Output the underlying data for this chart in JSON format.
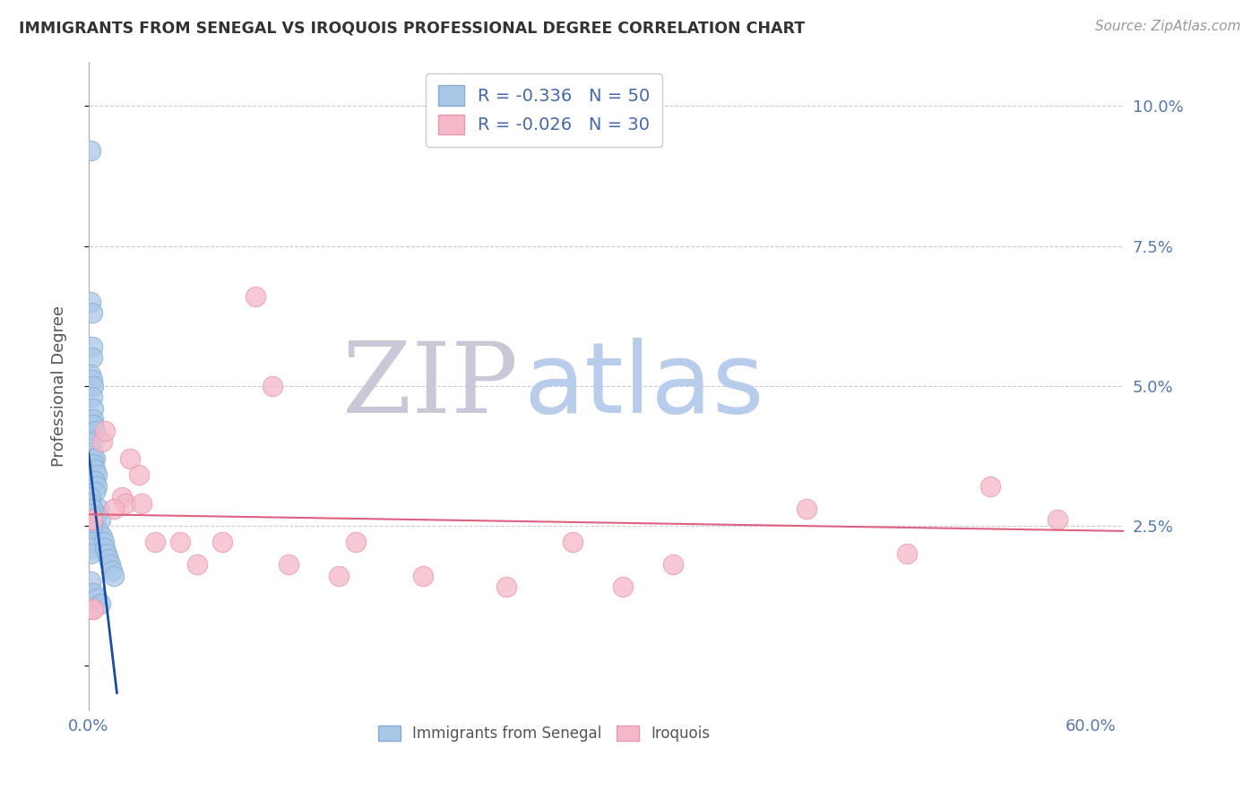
{
  "title": "IMMIGRANTS FROM SENEGAL VS IROQUOIS PROFESSIONAL DEGREE CORRELATION CHART",
  "source": "Source: ZipAtlas.com",
  "ylabel": "Professional Degree",
  "xlim": [
    0.0,
    0.62
  ],
  "ylim": [
    -0.008,
    0.108
  ],
  "senegal_color": "#a8c8e8",
  "senegal_edge_color": "#88acd0",
  "iroquois_color": "#f4b8c8",
  "iroquois_edge_color": "#e898b0",
  "trend_senegal_color": "#1a4fa0",
  "trend_iroquois_color": "#e06080",
  "legend_R_senegal": "-0.336",
  "legend_N_senegal": "50",
  "legend_R_iroquois": "-0.026",
  "legend_N_iroquois": "30",
  "watermark_zip": "ZIP",
  "watermark_atlas": "atlas",
  "watermark_zip_color": "#c8c8d8",
  "watermark_atlas_color": "#b8ccec",
  "legend_label_senegal": "Immigrants from Senegal",
  "legend_label_iroquois": "Iroquois",
  "senegal_x": [
    0.001,
    0.001,
    0.002,
    0.002,
    0.002,
    0.001,
    0.002,
    0.003,
    0.002,
    0.003,
    0.003,
    0.002,
    0.003,
    0.004,
    0.003,
    0.002,
    0.003,
    0.004,
    0.003,
    0.004,
    0.005,
    0.003,
    0.004,
    0.005,
    0.004,
    0.006,
    0.005,
    0.007,
    0.006,
    0.008,
    0.001,
    0.001,
    0.002,
    0.001,
    0.001,
    0.002,
    0.002,
    0.001,
    0.001,
    0.001,
    0.009,
    0.01,
    0.011,
    0.012,
    0.013,
    0.014,
    0.015,
    0.003,
    0.005,
    0.007
  ],
  "senegal_y": [
    0.092,
    0.065,
    0.063,
    0.057,
    0.055,
    0.052,
    0.051,
    0.05,
    0.048,
    0.046,
    0.044,
    0.043,
    0.043,
    0.042,
    0.04,
    0.038,
    0.037,
    0.037,
    0.036,
    0.035,
    0.034,
    0.033,
    0.033,
    0.032,
    0.031,
    0.028,
    0.027,
    0.026,
    0.024,
    0.023,
    0.03,
    0.029,
    0.028,
    0.027,
    0.026,
    0.025,
    0.022,
    0.021,
    0.02,
    0.015,
    0.022,
    0.021,
    0.02,
    0.019,
    0.018,
    0.017,
    0.016,
    0.013,
    0.012,
    0.011
  ],
  "iroquois_x": [
    0.001,
    0.002,
    0.008,
    0.01,
    0.02,
    0.022,
    0.025,
    0.03,
    0.032,
    0.04,
    0.055,
    0.065,
    0.08,
    0.1,
    0.11,
    0.12,
    0.15,
    0.2,
    0.25,
    0.29,
    0.32,
    0.35,
    0.43,
    0.49,
    0.54,
    0.58,
    0.002,
    0.003,
    0.015,
    0.16
  ],
  "iroquois_y": [
    0.026,
    0.026,
    0.04,
    0.042,
    0.03,
    0.029,
    0.037,
    0.034,
    0.029,
    0.022,
    0.022,
    0.018,
    0.022,
    0.066,
    0.05,
    0.018,
    0.016,
    0.016,
    0.014,
    0.022,
    0.014,
    0.018,
    0.028,
    0.02,
    0.032,
    0.026,
    0.01,
    0.01,
    0.028,
    0.022
  ],
  "trend_s_x0": 0.0,
  "trend_s_x1": 0.017,
  "trend_s_y0": 0.038,
  "trend_s_y1": -0.005,
  "trend_i_x0": 0.0,
  "trend_i_x1": 0.62,
  "trend_i_y0": 0.027,
  "trend_i_y1": 0.024
}
